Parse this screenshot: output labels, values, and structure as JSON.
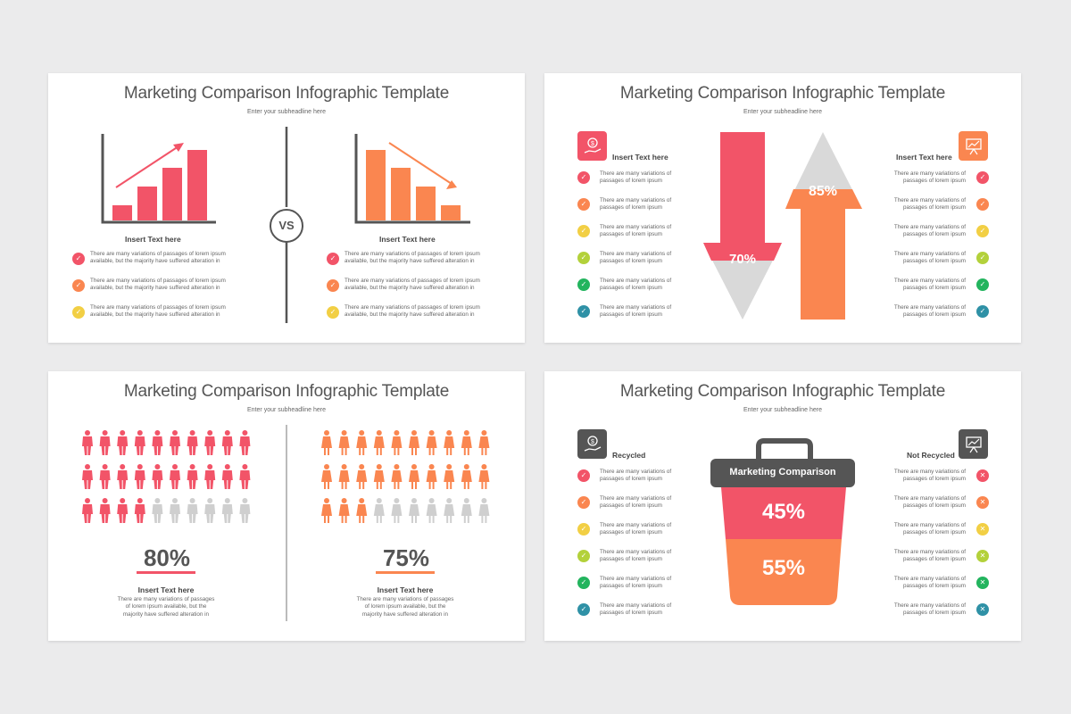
{
  "colors": {
    "red": "#f25468",
    "orange": "#fa8650",
    "yellow": "#f2cf44",
    "lime": "#b3d13b",
    "green": "#23b45e",
    "teal": "#2f91a6",
    "gray": "#cfcfcf",
    "dark": "#555555"
  },
  "slides": [
    {
      "title": "Marketing Comparison Infographic Template",
      "subtitle": "Enter your subheadline here",
      "vs": "VS",
      "left": {
        "heading": "Insert Text here",
        "bars_shown": [
          1,
          2,
          3,
          4
        ]
      },
      "right": {
        "heading": "Insert Text here",
        "bars_shown": [
          4,
          3,
          2,
          1
        ]
      },
      "items": [
        {
          "line1": "There are many variations of passages of lorem ipsum",
          "line2": "available, but the majority have suffered  alteration in"
        },
        {
          "line1": "There are many variations of passages of lorem ipsum",
          "line2": "available, but the majority have suffered  alteration in"
        },
        {
          "line1": "There are many variations of passages of lorem ipsum",
          "line2": "available, but the majority have suffered  alteration in"
        }
      ]
    },
    {
      "title": "Marketing Comparison Infographic Template",
      "subtitle": "Enter your subheadline here",
      "left_heading": "Insert Text here",
      "right_heading": "Insert Text here",
      "down_value": "70%",
      "up_value": "85%",
      "items": [
        {
          "line1": "There are many variations of",
          "line2": "passages of lorem ipsum"
        },
        {
          "line1": "There are many variations of",
          "line2": "passages of lorem ipsum"
        },
        {
          "line1": "There are many variations of",
          "line2": "passages of lorem ipsum"
        },
        {
          "line1": "There are many variations of",
          "line2": "passages of lorem ipsum"
        },
        {
          "line1": "There are many variations of",
          "line2": "passages of lorem ipsum"
        },
        {
          "line1": "There are many variations of",
          "line2": "passages of lorem ipsum"
        }
      ]
    },
    {
      "title": "Marketing Comparison Infographic Template",
      "subtitle": "Enter your subheadline here",
      "left": {
        "value": "80%",
        "filled_fraction": 0.8,
        "heading": "Insert Text here",
        "line1": "There are many variations of passages",
        "line2": "of lorem ipsum available, but the",
        "line3": "majority have suffered alteration in"
      },
      "right": {
        "value": "75%",
        "filled_fraction": 0.75,
        "heading": "Insert Text here",
        "line1": "There are many variations of passages",
        "line2": "of lorem ipsum available, but the",
        "line3": "majority have suffered alteration in"
      }
    },
    {
      "title": "Marketing Comparison Infographic Template",
      "subtitle": "Enter your subheadline here",
      "left_heading": "Recycled",
      "right_heading": "Not Recycled",
      "bin_label": "Marketing Comparison",
      "top_value": "45%",
      "bottom_value": "55%",
      "items": [
        {
          "line1": "There are many variations of",
          "line2": "passages of lorem ipsum"
        },
        {
          "line1": "There are many variations of",
          "line2": "passages of lorem ipsum"
        },
        {
          "line1": "There are many variations of",
          "line2": "passages of lorem ipsum"
        },
        {
          "line1": "There are many variations of",
          "line2": "passages of lorem ipsum"
        },
        {
          "line1": "There are many variations of",
          "line2": "passages of lorem ipsum"
        },
        {
          "line1": "There are many variations of",
          "line2": "passages of lorem ipsum"
        }
      ]
    }
  ]
}
